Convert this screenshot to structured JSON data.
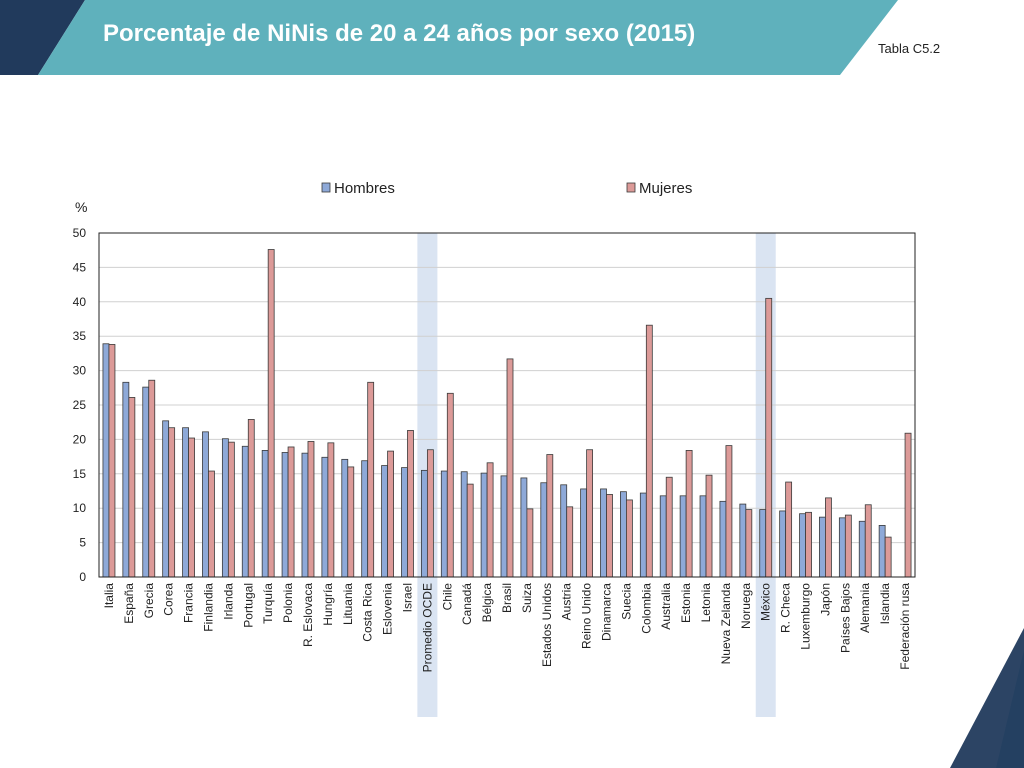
{
  "slide": {
    "title": "Porcentaje de NiNis de 20 a 24 años por sexo (2015)",
    "table_ref": "Tabla C5.2",
    "colors": {
      "dark": "#213a5c",
      "teal": "#5fb1bc"
    }
  },
  "chart_data": {
    "type": "bar",
    "title": "",
    "xlabel": "",
    "ylabel": "%",
    "ylim": [
      0,
      50
    ],
    "yticks": [
      0,
      5,
      10,
      15,
      20,
      25,
      30,
      35,
      40,
      45,
      50
    ],
    "grid": true,
    "legend_position": "top",
    "highlighted_categories": [
      "Promedio OCDE",
      "México"
    ],
    "highlight_color": "#dae4f2",
    "categories": [
      "Italia",
      "España",
      "Grecia",
      "Corea",
      "Francia",
      "Finlandia",
      "Irlanda",
      "Portugal",
      "Turquía",
      "Polonia",
      "R. Eslovaca",
      "Hungría",
      "Lituania",
      "Costa Rica",
      "Eslovenia",
      "Israel",
      "Promedio OCDE",
      "Chile",
      "Canadá",
      "Bélgica",
      "Brasil",
      "Suiza",
      "Estados Unidos",
      "Austria",
      "Reino Unido",
      "Dinamarca",
      "Suecia",
      "Colombia",
      "Australia",
      "Estonia",
      "Letonia",
      "Nueva Zelanda",
      "Noruega",
      "México",
      "R. Checa",
      "Luxemburgo",
      "Japón",
      "Países Bajos",
      "Alemania",
      "Islandia",
      "Federación rusa"
    ],
    "series": [
      {
        "name": "Hombres",
        "color": "#8ea9d8",
        "values": [
          33.9,
          28.3,
          27.6,
          22.7,
          21.7,
          21.1,
          20.1,
          19.0,
          18.4,
          18.1,
          18.0,
          17.4,
          17.1,
          16.9,
          16.2,
          15.9,
          15.5,
          15.4,
          15.3,
          15.1,
          14.7,
          14.4,
          13.7,
          13.4,
          12.8,
          12.8,
          12.4,
          12.2,
          11.8,
          11.8,
          11.8,
          11.0,
          10.6,
          9.8,
          9.6,
          9.2,
          8.7,
          8.6,
          8.1,
          7.5,
          null
        ]
      },
      {
        "name": "Mujeres",
        "color": "#dc9a98",
        "values": [
          33.8,
          26.1,
          28.6,
          21.7,
          20.2,
          15.4,
          19.6,
          22.9,
          47.6,
          18.9,
          19.7,
          19.5,
          16.0,
          28.3,
          18.3,
          21.3,
          18.5,
          26.7,
          13.5,
          16.6,
          31.7,
          9.9,
          17.8,
          10.2,
          18.5,
          12.0,
          11.2,
          36.6,
          14.5,
          18.4,
          14.8,
          19.1,
          9.8,
          40.5,
          13.8,
          9.4,
          11.5,
          9.0,
          10.5,
          5.8,
          20.9
        ]
      }
    ]
  }
}
